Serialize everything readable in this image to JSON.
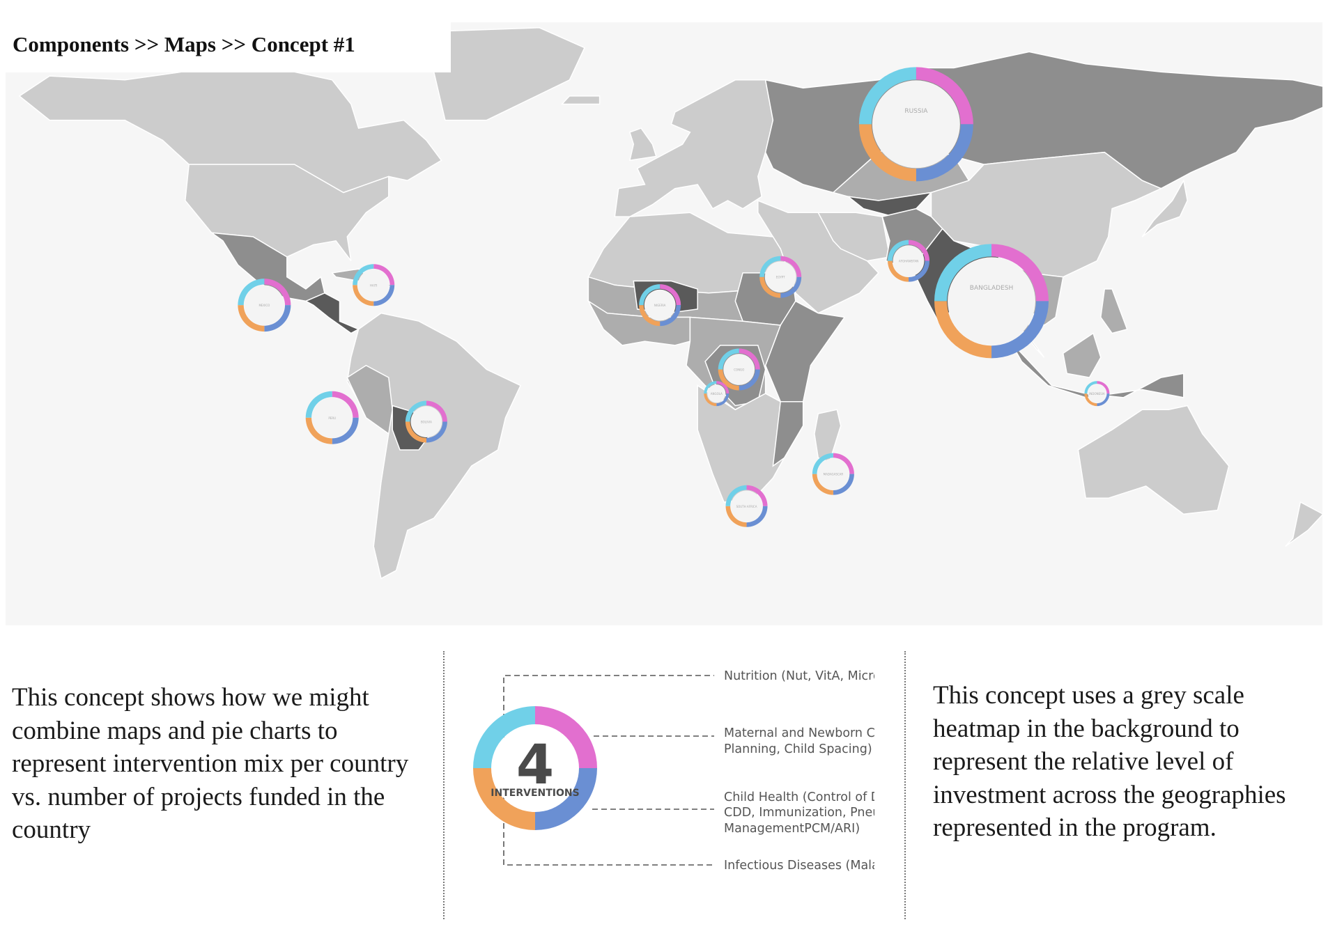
{
  "breadcrumb": "Components >> Maps >> Concept #1",
  "left_text": "This concept shows how we might combine maps and pie charts to represent intervention mix per country vs. number of projects funded in the country",
  "right_text": "This concept uses a grey scale heatmap in the background to represent the relative level of investment across the geographies represented in the program.",
  "colors": {
    "nutrition": "#e26fcf",
    "maternal": "#6a8fd3",
    "child_health": "#f0a25a",
    "infectious": "#70d0e8",
    "ocean": "#f6f6f6",
    "land_light": "#cccccc",
    "land_mid": "#adadad",
    "land_dark": "#8e8e8e",
    "land_darkest": "#5a5a5a"
  },
  "map": {
    "markers": [
      {
        "name": "RUSSIA",
        "lon": 70,
        "lat": 59,
        "size": "large"
      },
      {
        "name": "BANGLADESH",
        "lon": 90,
        "lat": 15,
        "size": "large"
      },
      {
        "name": "MEXICO",
        "lon": -103,
        "lat": 14,
        "size": "medium"
      },
      {
        "name": "HAITI",
        "lon": -74,
        "lat": 19,
        "size": "small"
      },
      {
        "name": "NIGERIA",
        "lon": 2,
        "lat": 14,
        "size": "small"
      },
      {
        "name": "EGYPT",
        "lon": 34,
        "lat": 21,
        "size": "small"
      },
      {
        "name": "AFGHANISTAN",
        "lon": 68,
        "lat": 25,
        "size": "small"
      },
      {
        "name": "CONGO",
        "lon": 23,
        "lat": -2,
        "size": "small"
      },
      {
        "name": "ANGOLA",
        "lon": 17,
        "lat": -8,
        "size": "tiny"
      },
      {
        "name": "PERU",
        "lon": -85,
        "lat": -14,
        "size": "medium"
      },
      {
        "name": "BOLIVIA",
        "lon": -60,
        "lat": -15,
        "size": "small"
      },
      {
        "name": "MADAGASCAR",
        "lon": 48,
        "lat": -28,
        "size": "small"
      },
      {
        "name": "SOUTH AFRICA",
        "lon": 25,
        "lat": -36,
        "size": "small"
      },
      {
        "name": "INDONESIA",
        "lon": 118,
        "lat": -8,
        "size": "tiny"
      }
    ]
  },
  "legend": {
    "count": "4",
    "count_label": "INTERVENTIONS",
    "items": [
      {
        "line1": "Nutrition (Nut, VitA, Micro",
        "line2": "",
        "line3": ""
      },
      {
        "line1": "Maternal and Newborn Ca",
        "line2": "Planning, Child Spacing)",
        "line3": ""
      },
      {
        "line1": "Child Health (Control of D",
        "line2": "CDD, Immunization, Pneu",
        "line3": "ManagementPCM/ARI)"
      },
      {
        "line1": "Infectious Diseases (Mala",
        "line2": "",
        "line3": ""
      }
    ]
  }
}
